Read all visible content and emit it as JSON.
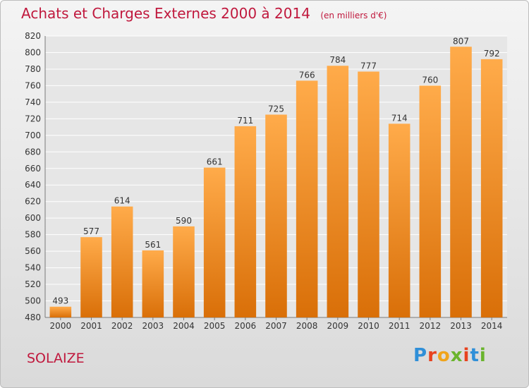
{
  "chart_data": {
    "type": "bar",
    "title": "Achats et Charges Externes 2000 à 2014",
    "subtitle": "(en milliers d'€)",
    "categories": [
      "2000",
      "2001",
      "2002",
      "2003",
      "2004",
      "2005",
      "2006",
      "2007",
      "2008",
      "2009",
      "2010",
      "2011",
      "2012",
      "2013",
      "2014"
    ],
    "values": [
      493,
      577,
      614,
      561,
      590,
      661,
      711,
      725,
      766,
      784,
      777,
      714,
      760,
      807,
      792
    ],
    "ylim": [
      480,
      820
    ],
    "yticks": [
      480,
      500,
      520,
      540,
      560,
      580,
      600,
      620,
      640,
      660,
      680,
      700,
      720,
      740,
      760,
      780,
      800,
      820
    ],
    "grid": true,
    "bar_color": "#f28e1e",
    "legend": "none"
  },
  "commune": "SOLAIZE",
  "logo": {
    "text": "Proxiti",
    "letter_colors": [
      "#2f8fd8",
      "#e8421f",
      "#f0a41b",
      "#6ab42d",
      "#e8421f",
      "#2f8fd8",
      "#6ab42d"
    ]
  },
  "colors": {
    "title": "#c0183d",
    "grid": "#ffffff",
    "axis": "#7a7a7a"
  }
}
